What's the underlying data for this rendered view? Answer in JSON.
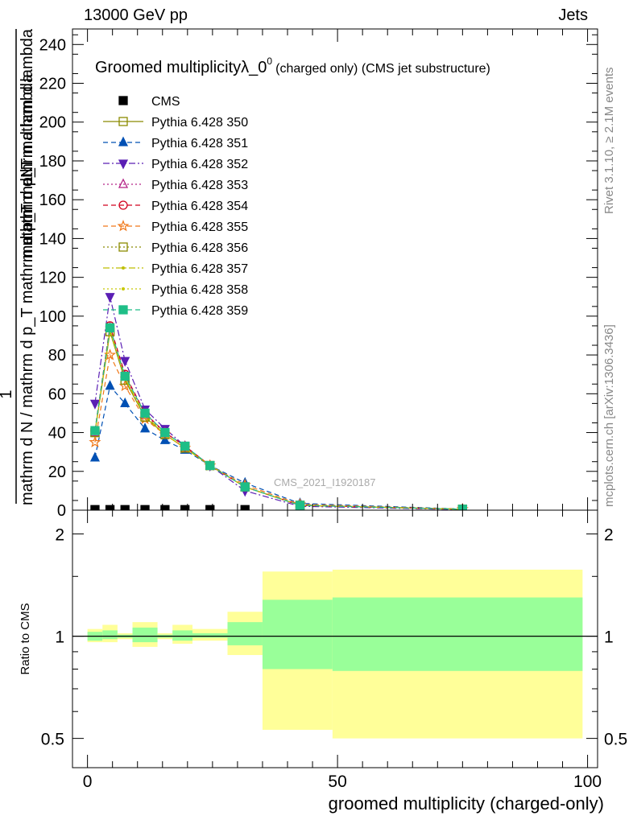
{
  "header": {
    "left": "13000 GeV pp",
    "right": "Jets"
  },
  "side_labels": {
    "rivet": "Rivet 3.1.10, ≥ 2.1M events",
    "mcplots": "mcplots.cern.ch [arXiv:1306.3436]"
  },
  "colors": {
    "band_inner": "#99ff99",
    "band_outer": "#ffff99",
    "series": [
      "#8b8b00",
      "#0050b4",
      "#5a1eb4",
      "#b42387",
      "#d2001e",
      "#f07819",
      "#8b8b00",
      "#bebe00",
      "#c8c800",
      "#1ebe87"
    ]
  },
  "chart_data": [
    {
      "type": "line",
      "title": "Groomed multiplicityλ_0",
      "title_sup": "0",
      "title_suffix": "(charged only) (CMS jet substructure)",
      "ylabel_top": "mathrm dN",
      "ylabel_top2": "mathrm d p_T mathrm d lambda",
      "ylabel_bottom": "mathrm d N / mathrm d p_T mathrm d p_T mathrm d lambda",
      "ylabel_one": "1",
      "watermark": "CMS_2021_I1920187",
      "xlim": [
        -3,
        102
      ],
      "ylim": [
        0,
        248
      ],
      "yticks": [
        0,
        20,
        40,
        60,
        80,
        100,
        120,
        140,
        160,
        180,
        200,
        220,
        240
      ],
      "legend_position": "top-left",
      "x": [
        1.5,
        4.5,
        7.5,
        11.5,
        15.5,
        19.5,
        24.5,
        31.5,
        42.5,
        75
      ],
      "series": [
        {
          "name": "CMS",
          "marker": "square-filled",
          "values": [
            0.3,
            0.3,
            0.3,
            0.3,
            0.3,
            0.3,
            0.3,
            0.3,
            null,
            null
          ]
        },
        {
          "name": "Pythia 6.428 350",
          "marker": "square-open",
          "line": "solid",
          "values": [
            40,
            92,
            67,
            48,
            39,
            32,
            23,
            12,
            2.5,
            0.5
          ]
        },
        {
          "name": "Pythia 6.428 351",
          "marker": "triangle-up",
          "line": "dashed",
          "values": [
            27,
            64,
            55,
            42,
            36,
            31,
            23,
            14,
            3.5,
            0.6
          ]
        },
        {
          "name": "Pythia 6.428 352",
          "marker": "triangle-down",
          "line": "dashdot",
          "values": [
            55,
            110,
            77,
            52,
            42,
            33,
            23,
            10,
            2.0,
            0.3
          ]
        },
        {
          "name": "Pythia 6.428 353",
          "marker": "triangle-open",
          "line": "dotted",
          "values": [
            40,
            94,
            69,
            49,
            40,
            33,
            23,
            12,
            2.5,
            0.5
          ]
        },
        {
          "name": "Pythia 6.428 354",
          "marker": "circle-open",
          "line": "dashed",
          "values": [
            41,
            95,
            70,
            50,
            40,
            33,
            23,
            12,
            2.5,
            0.5
          ]
        },
        {
          "name": "Pythia 6.428 355",
          "marker": "star-open",
          "line": "dashed",
          "values": [
            35,
            80,
            64,
            47,
            39,
            32,
            23,
            13,
            3.0,
            0.5
          ]
        },
        {
          "name": "Pythia 6.428 356",
          "marker": "square-open",
          "line": "dotted",
          "values": [
            40,
            92,
            67,
            48,
            39,
            32,
            23,
            12,
            2.5,
            0.5
          ]
        },
        {
          "name": "Pythia 6.428 357",
          "marker": "dot",
          "line": "dashdot",
          "values": [
            40,
            93,
            68,
            49,
            39,
            32,
            23,
            12,
            2.5,
            0.5
          ]
        },
        {
          "name": "Pythia 6.428 358",
          "marker": "dot",
          "line": "dotted",
          "values": [
            40,
            92,
            68,
            48,
            39,
            32,
            23,
            12,
            2.5,
            0.5
          ]
        },
        {
          "name": "Pythia 6.428 359",
          "marker": "square-filled",
          "line": "dashed",
          "values": [
            41,
            94,
            69,
            50,
            40,
            33,
            23,
            12,
            2.5,
            0.5
          ]
        }
      ]
    },
    {
      "type": "area",
      "ylabel": "Ratio to CMS",
      "xlabel": "groomed multiplicity (charged-only)",
      "xlim": [
        -3,
        102
      ],
      "ylim": [
        0.41,
        2.35
      ],
      "log_scale": true,
      "yticks": [
        0.5,
        1,
        2
      ],
      "xticks": [
        0,
        50,
        100
      ],
      "bins": [
        {
          "lo": 0,
          "hi": 3,
          "inner": [
            0.97,
            1.03
          ],
          "outer": [
            0.96,
            1.05
          ]
        },
        {
          "lo": 3,
          "hi": 6,
          "inner": [
            0.98,
            1.04
          ],
          "outer": [
            0.96,
            1.08
          ]
        },
        {
          "lo": 6,
          "hi": 9,
          "inner": [
            0.99,
            1.01
          ],
          "outer": [
            0.98,
            1.02
          ]
        },
        {
          "lo": 9,
          "hi": 14,
          "inner": [
            0.96,
            1.06
          ],
          "outer": [
            0.93,
            1.1
          ]
        },
        {
          "lo": 14,
          "hi": 17,
          "inner": [
            0.99,
            1.01
          ],
          "outer": [
            0.98,
            1.02
          ]
        },
        {
          "lo": 17,
          "hi": 21,
          "inner": [
            0.97,
            1.04
          ],
          "outer": [
            0.95,
            1.08
          ]
        },
        {
          "lo": 21,
          "hi": 28,
          "inner": [
            0.99,
            1.02
          ],
          "outer": [
            0.97,
            1.05
          ]
        },
        {
          "lo": 28,
          "hi": 35,
          "inner": [
            0.94,
            1.1
          ],
          "outer": [
            0.88,
            1.18
          ]
        },
        {
          "lo": 35,
          "hi": 49,
          "inner": [
            0.8,
            1.28
          ],
          "outer": [
            0.53,
            1.55
          ]
        },
        {
          "lo": 49,
          "hi": 99,
          "inner": [
            0.79,
            1.3
          ],
          "outer": [
            0.5,
            1.57
          ]
        }
      ]
    }
  ]
}
